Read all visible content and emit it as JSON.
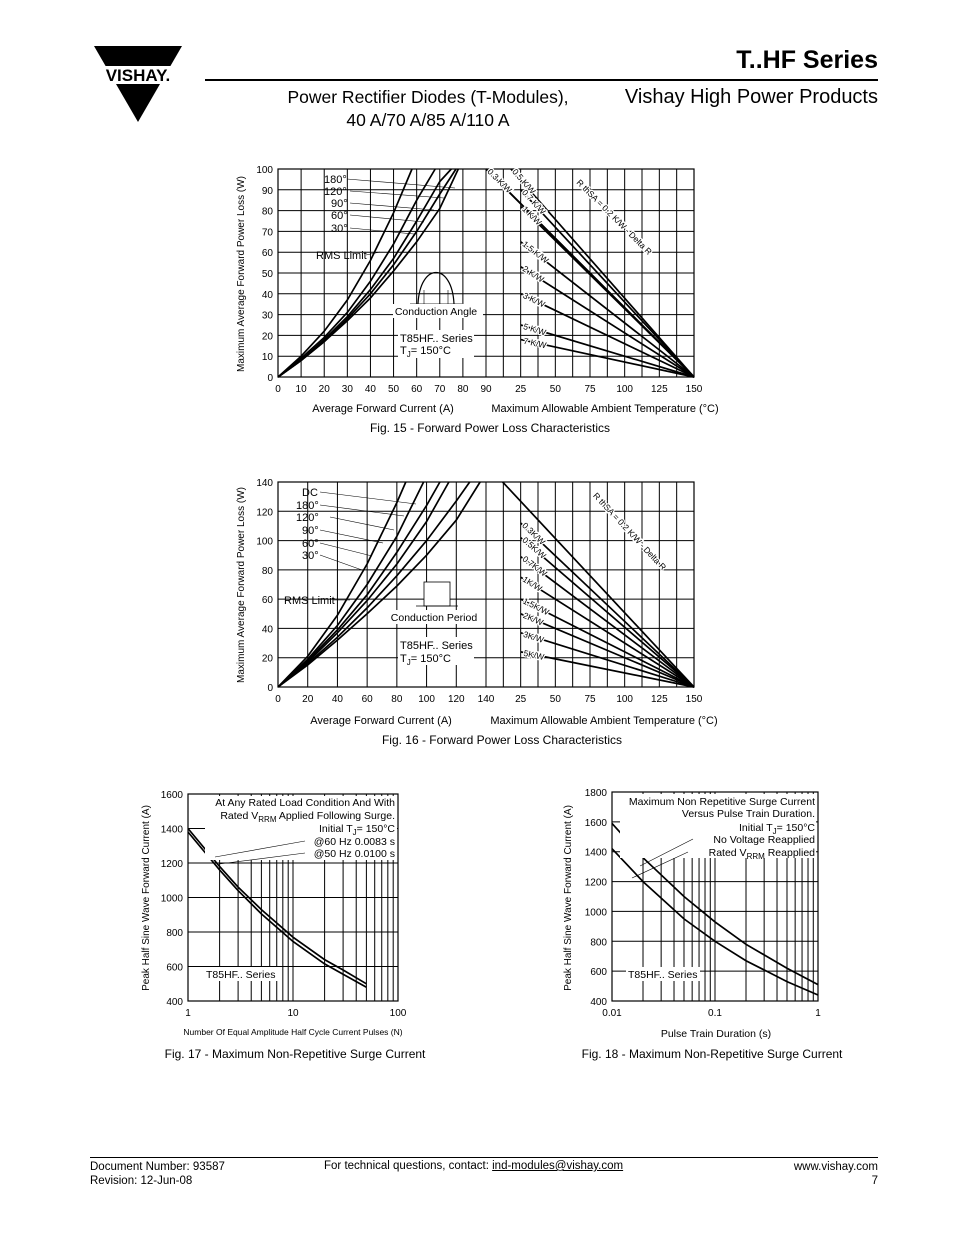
{
  "header": {
    "logo_text": "VISHAY.",
    "series_title": "T..HF Series",
    "subtitle_line1": "Power Rectifier Diodes (T-Modules),",
    "subtitle_line2": "40 A/70 A/85 A/110 A",
    "brand_line": "Vishay High Power Products"
  },
  "chart_data": [
    {
      "type": "line",
      "id": "fig15",
      "title": "Fig. 15 - Forward Power Loss Characteristics",
      "ylabel": "Maximum Average Forward Power Loss (W)",
      "xlabel_left": "Average Forward Current (A)",
      "xlabel_right": "Maximum Allowable Ambient Temperature (°C)",
      "ylim": [
        0,
        100
      ],
      "y_ticks": [
        "0",
        "10",
        "20",
        "30",
        "40",
        "50",
        "60",
        "70",
        "80",
        "90",
        "100"
      ],
      "x_left_ticks": [
        "0",
        "10",
        "20",
        "30",
        "40",
        "50",
        "60",
        "70",
        "80",
        "90"
      ],
      "x_right_ticks": [
        "25",
        "50",
        "75",
        "100",
        "125",
        "150"
      ],
      "x_left_range": [
        0,
        90
      ],
      "x_right_range": [
        0,
        150
      ],
      "series": [
        {
          "name": "180°",
          "x": [
            0,
            10,
            20,
            30,
            40,
            50,
            60,
            70,
            78
          ],
          "y": [
            0,
            8,
            17,
            27,
            38,
            51,
            65,
            81,
            100
          ]
        },
        {
          "name": "120°",
          "x": [
            0,
            10,
            20,
            30,
            40,
            50,
            60,
            70,
            77
          ],
          "y": [
            0,
            8,
            17,
            28,
            40,
            54,
            70,
            88,
            100
          ]
        },
        {
          "name": "90°",
          "x": [
            0,
            10,
            20,
            30,
            40,
            50,
            60,
            70,
            75
          ],
          "y": [
            0,
            8,
            18,
            29,
            42,
            57,
            75,
            94,
            100
          ]
        },
        {
          "name": "60°",
          "x": [
            0,
            10,
            20,
            30,
            40,
            50,
            60,
            68
          ],
          "y": [
            0,
            9,
            19,
            31,
            46,
            64,
            85,
            100
          ]
        },
        {
          "name": "30°",
          "x": [
            0,
            10,
            20,
            30,
            40,
            50,
            58
          ],
          "y": [
            0,
            10,
            22,
            37,
            56,
            79,
            100
          ]
        }
      ],
      "rms_limit_label": "RMS Limit",
      "conduction_label": "Conduction Angle",
      "device_label": "T85HF.. Series",
      "tj_label": "T",
      "tj_sub": "J",
      "tj_value": "= 150°C",
      "rthsa_label": "R thSA = 0.2 K/W - Delta R",
      "thermal_lines": [
        {
          "label": "0.3 K/W",
          "y_start": 100,
          "t_start": 0
        },
        {
          "label": "0.5 K/W",
          "y_start": 100,
          "t_start": 18
        },
        {
          "label": "0.7 K/W",
          "y_start": 90,
          "t_start": 25
        },
        {
          "label": "1 K/W",
          "y_start": 82,
          "t_start": 25
        },
        {
          "label": "1.5 K/W",
          "y_start": 65,
          "t_start": 25
        },
        {
          "label": "2 K/W",
          "y_start": 53,
          "t_start": 25
        },
        {
          "label": "3 K/W",
          "y_start": 40,
          "t_start": 25
        },
        {
          "label": "5 K/W",
          "y_start": 25,
          "t_start": 25
        },
        {
          "label": "7 K/W",
          "y_start": 18,
          "t_start": 25
        }
      ],
      "rthsa_line": {
        "y_start": 100,
        "t_start": 0
      }
    },
    {
      "type": "line",
      "id": "fig16",
      "title": "Fig. 16 - Forward Power Loss Characteristics",
      "ylabel": "Maximum Average Forward Power Loss (W)",
      "xlabel_left": "Average Forward Current (A)",
      "xlabel_right": "Maximum Allowable Ambient Temperature (°C)",
      "ylim": [
        0,
        140
      ],
      "y_ticks": [
        "0",
        "20",
        "40",
        "60",
        "80",
        "100",
        "120",
        "140"
      ],
      "x_left_ticks": [
        "0",
        "20",
        "40",
        "60",
        "80",
        "100",
        "120",
        "140"
      ],
      "x_right_ticks": [
        "25",
        "50",
        "75",
        "100",
        "125",
        "150"
      ],
      "x_left_range": [
        0,
        140
      ],
      "x_right_range": [
        0,
        150
      ],
      "series": [
        {
          "name": "DC",
          "x": [
            0,
            20,
            40,
            60,
            80,
            100,
            120,
            136
          ],
          "y": [
            0,
            15,
            32,
            50,
            69,
            90,
            114,
            140
          ]
        },
        {
          "name": "180°",
          "x": [
            0,
            20,
            40,
            60,
            80,
            100,
            120,
            129
          ],
          "y": [
            0,
            16,
            34,
            54,
            76,
            100,
            127,
            140
          ]
        },
        {
          "name": "120°",
          "x": [
            0,
            20,
            40,
            60,
            80,
            100,
            115
          ],
          "y": [
            0,
            17,
            37,
            59,
            84,
            113,
            140
          ]
        },
        {
          "name": "90°",
          "x": [
            0,
            20,
            40,
            60,
            80,
            100,
            109
          ],
          "y": [
            0,
            18,
            39,
            63,
            92,
            124,
            140
          ]
        },
        {
          "name": "60°",
          "x": [
            0,
            20,
            40,
            60,
            80,
            98
          ],
          "y": [
            0,
            19,
            42,
            70,
            103,
            140
          ]
        },
        {
          "name": "30°",
          "x": [
            0,
            20,
            40,
            60,
            80,
            86
          ],
          "y": [
            0,
            21,
            49,
            84,
            126,
            140
          ]
        }
      ],
      "rms_limit_label": "RMS Limit",
      "conduction_label": "Conduction Period",
      "device_label": "T85HF.. Series",
      "tj_label": "T",
      "tj_sub": "J",
      "tj_value": "= 150°C",
      "rthsa_label": "R thSA = 0.2 K/W - Delta R",
      "thermal_lines": [
        {
          "label": "0.3K/W",
          "y_start": 112,
          "t_start": 25
        },
        {
          "label": "0.5K/W",
          "y_start": 102,
          "t_start": 25
        },
        {
          "label": "0.7K/W",
          "y_start": 89,
          "t_start": 25
        },
        {
          "label": "1K/W",
          "y_start": 75,
          "t_start": 25
        },
        {
          "label": "1.5K/W",
          "y_start": 60,
          "t_start": 25
        },
        {
          "label": "2K/W",
          "y_start": 50,
          "t_start": 25
        },
        {
          "label": "3K/W",
          "y_start": 37,
          "t_start": 25
        },
        {
          "label": "5K/W",
          "y_start": 24,
          "t_start": 25
        }
      ],
      "rthsa_line": {
        "y_start": 140,
        "t_start": 12
      }
    },
    {
      "type": "line",
      "id": "fig17",
      "title": "Fig. 17 - Maximum Non-Repetitive Surge Current",
      "ylabel": "Peak Half Sine Wave Forward Current (A)",
      "xlabel": "Number Of Equal Amplitude Half Cycle Current Pulses (N)",
      "xscale": "log",
      "xlim": [
        1,
        100
      ],
      "ylim": [
        400,
        1600
      ],
      "y_ticks": [
        "400",
        "600",
        "800",
        "1000",
        "1200",
        "1400",
        "1600"
      ],
      "x_ticks": [
        "1",
        "10",
        "100"
      ],
      "series": [
        {
          "name": "@60 Hz 0.0083 s",
          "x": [
            1,
            2,
            3,
            5,
            10,
            20,
            30,
            50
          ],
          "y": [
            1400,
            1180,
            1060,
            930,
            770,
            640,
            580,
            500
          ]
        },
        {
          "name": "@50 Hz 0.0100 s",
          "x": [
            1,
            2,
            3,
            5,
            10,
            20,
            30,
            50
          ],
          "y": [
            1380,
            1160,
            1040,
            905,
            745,
            615,
            555,
            480
          ]
        }
      ],
      "note_line1": "At Any Rated Load Condition And With",
      "note_line2a": "Rated V",
      "note_line2_sub": "RRM",
      "note_line2b": " Applied Following Surge.",
      "note_line3a": "Initial T",
      "note_line3_sub": "J",
      "note_line3b": "= 150°C",
      "note_line4": "@60 Hz 0.0083 s",
      "note_line5": "@50 Hz 0.0100 s",
      "device_label": "T85HF.. Series"
    },
    {
      "type": "line",
      "id": "fig18",
      "title": "Fig. 18 - Maximum Non-Repetitive Surge Current",
      "ylabel": "Peak Half Sine Wave Forward Current (A)",
      "xlabel": "Pulse Train Duration (s)",
      "xscale": "log",
      "xlim": [
        0.01,
        1
      ],
      "ylim": [
        400,
        1800
      ],
      "y_ticks": [
        "400",
        "600",
        "800",
        "1000",
        "1200",
        "1400",
        "1600",
        "1800"
      ],
      "x_ticks": [
        "0.01",
        "0.1",
        "1"
      ],
      "series": [
        {
          "name": "Initial TJ = 150°C",
          "x": [
            0.01,
            0.02,
            0.05,
            0.1,
            0.2,
            0.5,
            1
          ],
          "y": [
            1590,
            1360,
            1100,
            930,
            780,
            620,
            510
          ]
        },
        {
          "name": "No Voltage Reapplied",
          "x": [
            0.01,
            0.02,
            0.05,
            0.1,
            0.2,
            0.5,
            1
          ],
          "y": [
            1420,
            1200,
            950,
            800,
            670,
            530,
            440
          ]
        }
      ],
      "note_line1": "Maximum Non Repetitive Surge Current",
      "note_line2": "Versus Pulse Train Duration.",
      "note_line3a": "Initial T",
      "note_line3_sub": "J",
      "note_line3b": "= 150°C",
      "note_line4": "No Voltage Reapplied",
      "note_line5a": "Rated V",
      "note_line5_sub": "RRM",
      "note_line5b": " Reapplied",
      "device_label": "T85HF.. Series"
    }
  ],
  "footer": {
    "doc_number": "Document Number: 93587",
    "revision": "Revision: 12-Jun-08",
    "contact_prefix": "For technical questions, contact: ",
    "contact_email": "ind-modules@vishay.com",
    "website": "www.vishay.com",
    "page_number": "7"
  }
}
